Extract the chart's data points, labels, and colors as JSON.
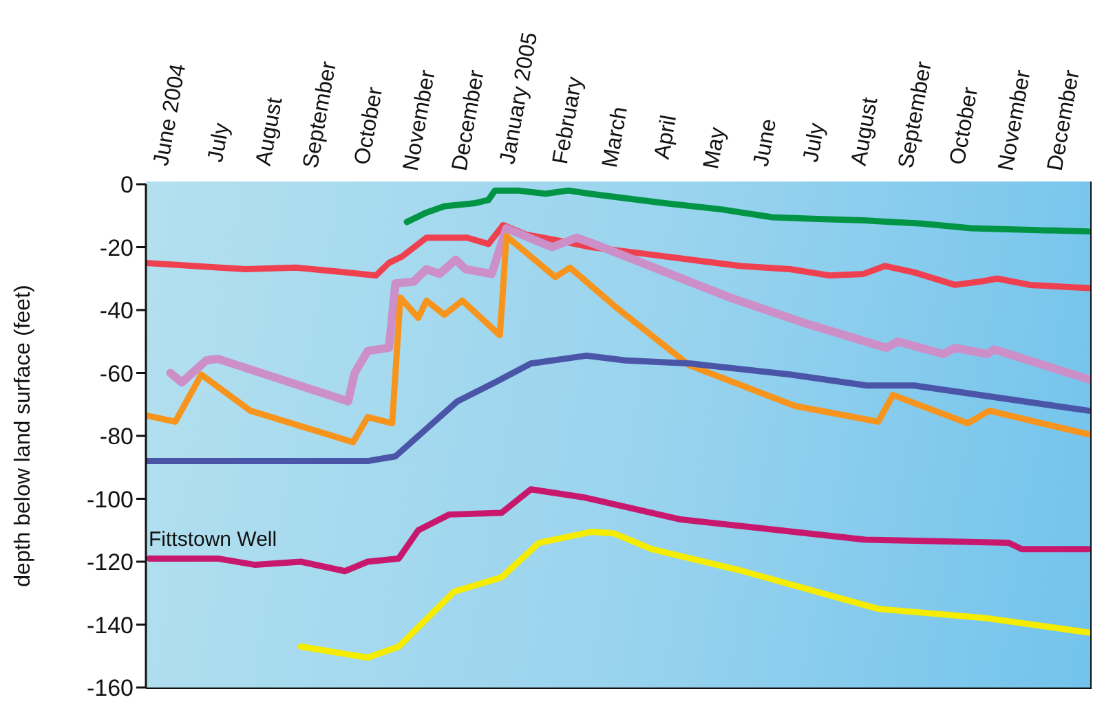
{
  "chart_data": {
    "type": "line",
    "ylabel": "depth below land surface (feet)",
    "xlim": [
      "2004-06-01",
      "2006-01-01"
    ],
    "xticks": [
      {
        "value": "2004-06-16",
        "label": "June 2004"
      },
      {
        "value": "2004-07-16",
        "label": "July"
      },
      {
        "value": "2004-08-16",
        "label": "August"
      },
      {
        "value": "2004-09-16",
        "label": "September"
      },
      {
        "value": "2004-10-16",
        "label": "October"
      },
      {
        "value": "2004-11-16",
        "label": "November"
      },
      {
        "value": "2004-12-16",
        "label": "December"
      },
      {
        "value": "2005-01-16",
        "label": "January 2005"
      },
      {
        "value": "2005-02-15",
        "label": "February"
      },
      {
        "value": "2005-03-16",
        "label": "March"
      },
      {
        "value": "2005-04-16",
        "label": "April"
      },
      {
        "value": "2005-05-16",
        "label": "May"
      },
      {
        "value": "2005-06-16",
        "label": "June"
      },
      {
        "value": "2005-07-16",
        "label": "July"
      },
      {
        "value": "2005-08-16",
        "label": "August"
      },
      {
        "value": "2005-09-16",
        "label": "September"
      },
      {
        "value": "2005-10-16",
        "label": "October"
      },
      {
        "value": "2005-11-16",
        "label": "November"
      },
      {
        "value": "2005-12-16",
        "label": "December"
      }
    ],
    "ylim": [
      -160,
      0
    ],
    "yticks": [
      0,
      -20,
      -40,
      -60,
      -80,
      -100,
      -120,
      -140,
      -160
    ],
    "marker": "none",
    "line_style": "solid",
    "annotations": [
      "Fittstown Well"
    ],
    "series": [
      {
        "color": "#009444",
        "x": [
          "2004-11-08",
          "2004-11-20",
          "2004-12-01",
          "2004-12-20",
          "2004-12-28",
          "2005-01-01",
          "2005-01-15",
          "2005-02-01",
          "2005-02-15",
          "2005-02-28",
          "2005-03-15",
          "2005-04-15",
          "2005-05-20",
          "2005-06-20",
          "2005-07-15",
          "2005-08-15",
          "2005-09-20",
          "2005-10-20",
          "2005-12-31"
        ],
        "values": [
          -12,
          -9,
          -7,
          -6,
          -5,
          -2,
          -2,
          -3,
          -2,
          -3,
          -4,
          -6,
          -8,
          -10.5,
          -11,
          -11.5,
          -12.5,
          -14,
          -15
        ]
      },
      {
        "color": "#ef4050",
        "x": [
          "2004-06-01",
          "2004-07-01",
          "2004-08-01",
          "2004-09-01",
          "2004-10-01",
          "2004-10-20",
          "2004-10-28",
          "2004-11-05",
          "2004-11-20",
          "2004-12-15",
          "2004-12-28",
          "2005-01-06",
          "2005-01-20",
          "2005-02-10",
          "2005-03-01",
          "2005-04-01",
          "2005-05-01",
          "2005-06-01",
          "2005-07-01",
          "2005-07-25",
          "2005-08-15",
          "2005-08-28",
          "2005-09-15",
          "2005-10-10",
          "2005-10-25",
          "2005-11-05",
          "2005-11-25",
          "2005-12-31"
        ],
        "values": [
          -25,
          -26,
          -27,
          -26.5,
          -28,
          -29,
          -25,
          -23,
          -17,
          -17,
          -19,
          -13,
          -16,
          -18,
          -20,
          -22,
          -24,
          -26,
          -27,
          -29,
          -28.5,
          -26,
          -28,
          -32,
          -31,
          -30,
          -32,
          -33
        ]
      },
      {
        "color": "#cc8fc8",
        "x": [
          "2004-06-16",
          "2004-06-23",
          "2004-07-08",
          "2004-07-15",
          "2004-10-03",
          "2004-10-07",
          "2004-10-15",
          "2004-10-28",
          "2004-11-01",
          "2004-11-12",
          "2004-11-20",
          "2004-11-28",
          "2004-12-08",
          "2004-12-14",
          "2004-12-30",
          "2005-01-08",
          "2005-02-05",
          "2005-02-20",
          "2005-03-01",
          "2005-05-25",
          "2005-07-12",
          "2005-08-29",
          "2005-09-05",
          "2005-10-03",
          "2005-10-10",
          "2005-10-30",
          "2005-11-03",
          "2005-12-31"
        ],
        "values": [
          -60,
          -63,
          -56,
          -55.5,
          -69,
          -60,
          -53,
          -52,
          -31.5,
          -31,
          -27,
          -28.5,
          -24,
          -27,
          -28.5,
          -14,
          -20,
          -17,
          -18.6,
          -36,
          -44.5,
          -52,
          -50,
          -54,
          -52,
          -54,
          -52.5,
          -62
        ]
      },
      {
        "color": "#f7941d",
        "x": [
          "2004-06-01",
          "2004-06-19",
          "2004-07-05",
          "2004-08-04",
          "2004-10-06",
          "2004-10-15",
          "2004-10-30",
          "2004-11-04",
          "2004-11-15",
          "2004-11-20",
          "2004-12-01",
          "2004-12-12",
          "2005-01-04",
          "2005-01-06",
          "2005-01-08",
          "2005-02-07",
          "2005-02-16",
          "2005-03-16",
          "2005-04-30",
          "2005-07-04",
          "2005-08-24",
          "2005-09-02",
          "2005-10-18",
          "2005-10-31",
          "2005-12-31"
        ],
        "values": [
          -73.5,
          -75.5,
          -60.5,
          -72,
          -82,
          -74,
          -76,
          -36,
          -42.5,
          -37,
          -41.5,
          -37,
          -48,
          -33,
          -16.5,
          -29.5,
          -26.5,
          -39,
          -57.5,
          -70.5,
          -75.5,
          -67,
          -76,
          -72,
          -79.5
        ]
      },
      {
        "color": "#4a55a8",
        "x": [
          "2004-06-01",
          "2004-10-15",
          "2004-11-01",
          "2004-12-09",
          "2005-01-01",
          "2005-01-23",
          "2005-02-26",
          "2005-03-22",
          "2005-05-01",
          "2005-07-01",
          "2005-08-17",
          "2005-09-15",
          "2005-12-31"
        ],
        "values": [
          -88,
          -88,
          -86.5,
          -69,
          -63,
          -57,
          -54.5,
          -56,
          -57,
          -60.5,
          -64,
          -64,
          -72
        ]
      },
      {
        "color": "#c8186e",
        "x": [
          "2004-06-03",
          "2004-07-15",
          "2004-08-07",
          "2004-09-04",
          "2004-10-01",
          "2004-10-15",
          "2004-11-03",
          "2004-11-15",
          "2004-12-04",
          "2005-01-05",
          "2005-01-23",
          "2005-02-24",
          "2005-04-24",
          "2005-08-16",
          "2005-11-12",
          "2005-11-20",
          "2005-12-31"
        ],
        "values": [
          -119,
          -119,
          -121,
          -120,
          -123,
          -120,
          -119,
          -110,
          -105,
          -104.5,
          -97,
          -99.5,
          -106.5,
          -113,
          -114,
          -116,
          -116
        ]
      },
      {
        "color": "#f5ec00",
        "x": [
          "2004-09-04",
          "2004-10-15",
          "2004-11-03",
          "2004-12-07",
          "2005-01-05",
          "2005-01-28",
          "2005-03-01",
          "2005-03-15",
          "2005-04-07",
          "2005-06-02",
          "2005-08-24",
          "2005-10-30",
          "2005-12-31"
        ],
        "values": [
          -147,
          -150.5,
          -147,
          -129.5,
          -125,
          -114,
          -110.5,
          -111,
          -116,
          -123,
          -135,
          -138,
          -142.5
        ]
      }
    ]
  }
}
